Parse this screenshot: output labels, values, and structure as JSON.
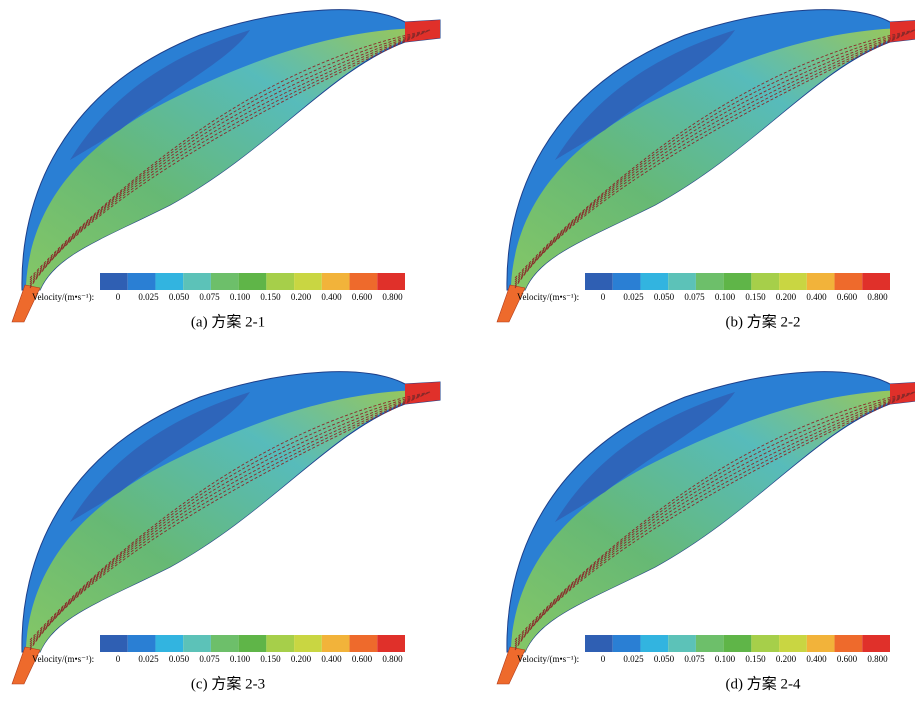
{
  "colors": [
    "#2f5fb3",
    "#2a7fd4",
    "#32b4e0",
    "#5cc2b8",
    "#6dbf6a",
    "#5fb548",
    "#a6cf4a",
    "#c9d642",
    "#f2b33a",
    "#ee6a2c",
    "#e0302a"
  ],
  "panels": [
    {
      "caption": "(a) 方案 2-1",
      "colorbar": {
        "label": "Velocity/(m•s⁻¹):",
        "ticks": [
          "0",
          "0.025",
          "0.050",
          "0.075",
          "0.100",
          "0.150",
          "0.200",
          "0.400",
          "0.600",
          "0.800"
        ]
      }
    },
    {
      "caption": "(b) 方案 2-2",
      "colorbar": {
        "label": "Velocity/(m•s⁻¹):",
        "ticks": [
          "0",
          "0.025",
          "0.050",
          "0.075",
          "0.100",
          "0.150",
          "0.200",
          "0.400",
          "0.600",
          "0.800"
        ]
      }
    },
    {
      "caption": "(c) 方案 2-3",
      "colorbar": {
        "label": "Velocity/(m•s⁻¹):",
        "ticks": [
          "0",
          "0.025",
          "0.050",
          "0.075",
          "0.100",
          "0.150",
          "0.200",
          "0.400",
          "0.600",
          "0.800"
        ]
      }
    },
    {
      "caption": "(d) 方案 2-4",
      "colorbar": {
        "label": "Velocity/(m•s⁻¹):",
        "ticks": [
          "0",
          "0.025",
          "0.050",
          "0.075",
          "0.100",
          "0.150",
          "0.200",
          "0.400",
          "0.600",
          "0.800"
        ]
      }
    }
  ]
}
